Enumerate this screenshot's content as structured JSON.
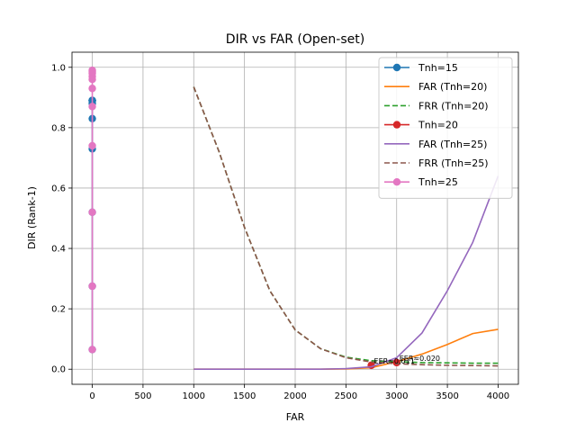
{
  "chart_data": {
    "type": "line",
    "title": "DIR vs FAR (Open-set)",
    "xlabel": "FAR",
    "ylabel": "DIR (Rank-1)",
    "xlim": [
      -200,
      4200
    ],
    "ylim": [
      -0.05,
      1.05
    ],
    "xticks": [
      0,
      500,
      1000,
      1500,
      2000,
      2500,
      3000,
      3500,
      4000
    ],
    "yticks": [
      0.0,
      0.2,
      0.4,
      0.6,
      0.8,
      1.0
    ],
    "grid": true,
    "legend_position": "top-right",
    "series": [
      {
        "name": "Tnh=15",
        "style": "line-marker",
        "color": "#1f77b4",
        "x": [
          0,
          0,
          0,
          0,
          0,
          0,
          0,
          0,
          0,
          0,
          0
        ],
        "y": [
          0.065,
          0.275,
          0.52,
          0.73,
          0.83,
          0.88,
          0.89,
          0.89,
          0.89,
          0.89,
          0.89
        ]
      },
      {
        "name": "FAR (Tnh=20)",
        "style": "solid",
        "color": "#ff7f0e",
        "x": [
          1000,
          1250,
          1500,
          1750,
          2000,
          2250,
          2500,
          2750,
          3000,
          3250,
          3500,
          3750,
          4000
        ],
        "y": [
          0.0,
          0.0,
          0.0,
          0.0,
          0.0,
          0.0,
          0.001,
          0.005,
          0.025,
          0.05,
          0.082,
          0.118,
          0.132
        ]
      },
      {
        "name": "FRR (Tnh=20)",
        "style": "dashed",
        "color": "#2ca02c",
        "x": [
          1000,
          1250,
          1500,
          1750,
          2000,
          2250,
          2500,
          2750,
          3000,
          3250,
          3500,
          3750,
          4000
        ],
        "y": [
          0.935,
          0.72,
          0.47,
          0.26,
          0.13,
          0.068,
          0.04,
          0.028,
          0.025,
          0.022,
          0.021,
          0.02,
          0.02
        ]
      },
      {
        "name": "Tnh=20",
        "style": "marker",
        "color": "#d62728",
        "x": [
          2750,
          3000
        ],
        "y": [
          0.013,
          0.022
        ]
      },
      {
        "name": "FAR (Tnh=25)",
        "style": "solid",
        "color": "#9467bd",
        "x": [
          1000,
          1250,
          1500,
          1750,
          2000,
          2250,
          2500,
          2750,
          3000,
          3250,
          3500,
          3750,
          4000
        ],
        "y": [
          0.0,
          0.0,
          0.0,
          0.0,
          0.0,
          0.0,
          0.002,
          0.008,
          0.038,
          0.12,
          0.26,
          0.42,
          0.64
        ]
      },
      {
        "name": "FRR (Tnh=25)",
        "style": "dashed",
        "color": "#8c564b",
        "x": [
          1000,
          1250,
          1500,
          1750,
          2000,
          2250,
          2500,
          2750,
          3000,
          3250,
          3500,
          3750,
          4000
        ],
        "y": [
          0.935,
          0.72,
          0.47,
          0.26,
          0.13,
          0.068,
          0.038,
          0.024,
          0.018,
          0.015,
          0.013,
          0.012,
          0.011
        ]
      },
      {
        "name": "Tnh=25",
        "style": "line-marker",
        "color": "#e377c2",
        "x": [
          0,
          0,
          0,
          0,
          0,
          0,
          0,
          0,
          0,
          0,
          0
        ],
        "y": [
          0.065,
          0.275,
          0.52,
          0.74,
          0.87,
          0.93,
          0.96,
          0.97,
          0.98,
          0.985,
          0.99
        ]
      }
    ],
    "annotations": [
      {
        "text": "EER≈0.011",
        "x": 2750,
        "y": 0.013
      },
      {
        "text": "EER≈0.020",
        "x": 3000,
        "y": 0.022
      }
    ]
  }
}
